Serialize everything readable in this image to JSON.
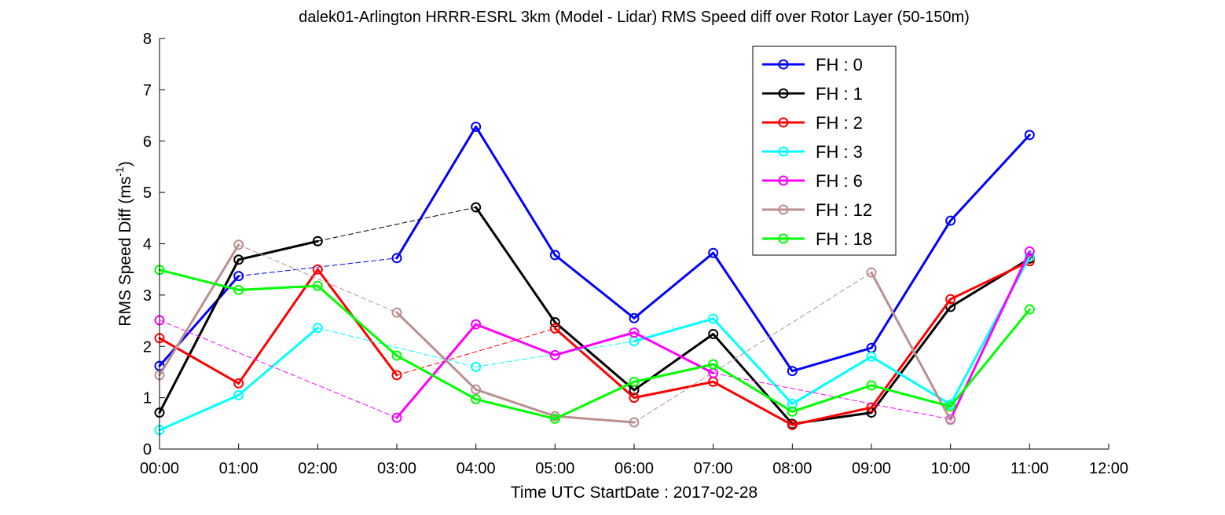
{
  "chart_data": {
    "type": "line",
    "title": "dalek01-Arlington HRRR-ESRL 3km (Model - Lidar) RMS Speed diff over Rotor Layer (50-150m)",
    "xlabel": "Time UTC    StartDate : 2017-02-28",
    "ylabel": {
      "base": "RMS Speed Diff (ms",
      "superscript": "-1",
      "close": ")"
    },
    "xlim": [
      0,
      12
    ],
    "ylim": [
      0,
      8
    ],
    "x_tick_labels": [
      "00:00",
      "01:00",
      "02:00",
      "03:00",
      "04:00",
      "05:00",
      "06:00",
      "07:00",
      "08:00",
      "09:00",
      "10:00",
      "11:00",
      "12:00"
    ],
    "y_tick_labels": [
      "0",
      "1",
      "2",
      "3",
      "4",
      "5",
      "6",
      "7",
      "8"
    ],
    "grid": false,
    "legend_position": "top-right",
    "series": [
      {
        "name": "FH : 0",
        "color": "#0000ff",
        "points": [
          [
            0,
            1.62
          ],
          [
            1,
            3.37
          ],
          [
            3,
            3.72
          ],
          [
            4,
            6.28
          ],
          [
            5,
            3.78
          ],
          [
            6,
            2.55
          ],
          [
            7,
            3.82
          ],
          [
            8,
            1.52
          ],
          [
            9,
            1.97
          ],
          [
            10,
            4.45
          ],
          [
            11,
            6.12
          ]
        ]
      },
      {
        "name": "FH : 1",
        "color": "#000000",
        "points": [
          [
            0,
            0.71
          ],
          [
            1,
            3.69
          ],
          [
            2,
            4.05
          ],
          [
            4,
            4.71
          ],
          [
            5,
            2.47
          ],
          [
            6,
            1.15
          ],
          [
            7,
            2.24
          ],
          [
            8,
            0.49
          ],
          [
            9,
            0.71
          ],
          [
            10,
            2.77
          ],
          [
            11,
            3.71
          ]
        ]
      },
      {
        "name": "FH : 2",
        "color": "#ff0000",
        "points": [
          [
            0,
            2.16
          ],
          [
            1,
            1.28
          ],
          [
            2,
            3.5
          ],
          [
            3,
            1.44
          ],
          [
            5,
            2.35
          ],
          [
            6,
            1.0
          ],
          [
            7,
            1.31
          ],
          [
            8,
            0.47
          ],
          [
            9,
            0.81
          ],
          [
            10,
            2.92
          ],
          [
            11,
            3.66
          ]
        ]
      },
      {
        "name": "FH : 3",
        "color": "#00ffff",
        "points": [
          [
            0,
            0.37
          ],
          [
            1,
            1.05
          ],
          [
            2,
            2.36
          ],
          [
            4,
            1.6
          ],
          [
            6,
            2.1
          ],
          [
            7,
            2.54
          ],
          [
            8,
            0.88
          ],
          [
            9,
            1.8
          ],
          [
            10,
            0.87
          ],
          [
            11,
            3.75
          ]
        ]
      },
      {
        "name": "FH : 6",
        "color": "#ff00ff",
        "points": [
          [
            0,
            2.51
          ],
          [
            3,
            0.61
          ],
          [
            4,
            2.43
          ],
          [
            5,
            1.83
          ],
          [
            6,
            2.27
          ],
          [
            7,
            1.48
          ],
          [
            10,
            0.58
          ],
          [
            11,
            3.85
          ]
        ]
      },
      {
        "name": "FH : 12",
        "color": "#bc8f8f",
        "points": [
          [
            0,
            1.44
          ],
          [
            1,
            3.98
          ],
          [
            3,
            2.66
          ],
          [
            4,
            1.16
          ],
          [
            5,
            0.64
          ],
          [
            6,
            0.52
          ],
          [
            9,
            3.44
          ],
          [
            10,
            0.57
          ]
        ]
      },
      {
        "name": "FH : 18",
        "color": "#00ff00",
        "points": [
          [
            0,
            3.49
          ],
          [
            1,
            3.1
          ],
          [
            2,
            3.18
          ],
          [
            3,
            1.82
          ],
          [
            4,
            0.97
          ],
          [
            5,
            0.59
          ],
          [
            6,
            1.31
          ],
          [
            7,
            1.65
          ],
          [
            8,
            0.73
          ],
          [
            9,
            1.24
          ],
          [
            10,
            0.83
          ],
          [
            11,
            2.72
          ]
        ]
      }
    ]
  }
}
